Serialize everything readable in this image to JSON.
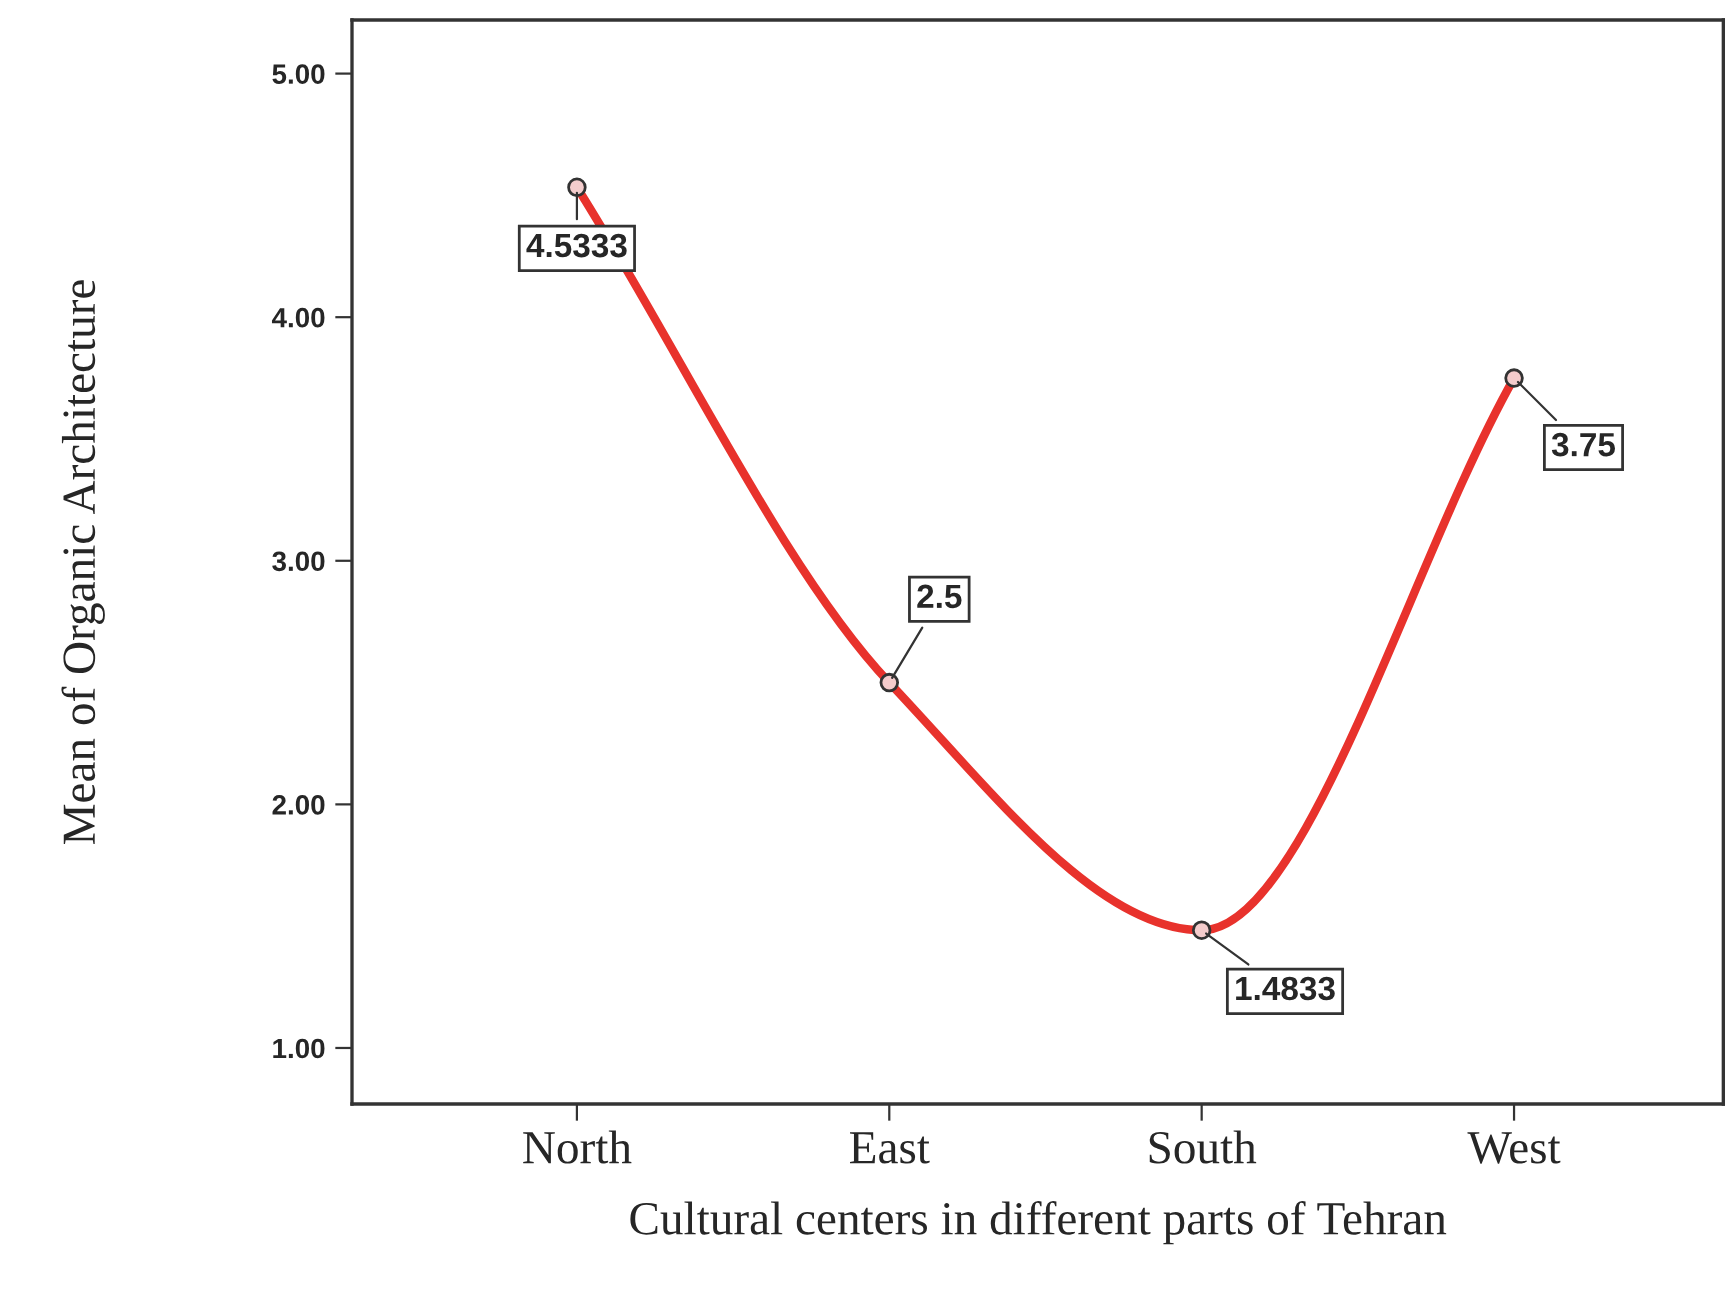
{
  "chart_data": {
    "type": "line",
    "xlabel": "Cultural centers in different parts of Tehran",
    "ylabel": "Mean of Organic Architecture",
    "categories": [
      "North",
      "East",
      "South",
      "West"
    ],
    "series": [
      {
        "color": "#e8322c",
        "values": [
          4.5333,
          2.5,
          1.4833,
          3.75
        ]
      }
    ],
    "ylim": [
      0.77,
      5.22
    ],
    "yticks": [
      {
        "value": 1,
        "label": "1.00"
      },
      {
        "value": 2,
        "label": "2.00"
      },
      {
        "value": 3,
        "label": "3.00"
      },
      {
        "value": 4,
        "label": "4.00"
      },
      {
        "value": 5,
        "label": "5.00"
      }
    ],
    "data_labels": true,
    "marker": "circle",
    "line_style": "solid",
    "grid": false,
    "legend": false
  }
}
